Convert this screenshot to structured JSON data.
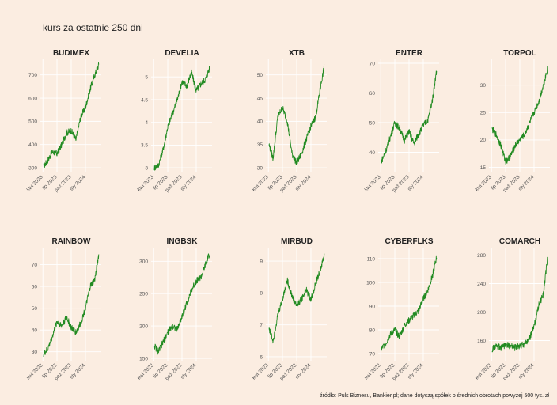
{
  "chart_data": {
    "type": "line",
    "title": "kurs za ostatnie 250 dni",
    "caption": "źródło: Puls Biznesu, Bankier.pl; dane dotyczą spółek o średnich obrotach powyżej 500 tys. zł",
    "line_color": "#228b22",
    "background": "#fbede1",
    "grid_color": "#ffffff",
    "x_axis": {
      "start": "2023-04-05",
      "end": "2024-03-28",
      "tick_dates": [
        "2023-04-01",
        "2023-07-01",
        "2023-10-01",
        "2024-01-01"
      ],
      "tick_labels": [
        "kwi 2023",
        "lip 2023",
        "paź 2023",
        "sty 2024"
      ]
    },
    "panels": [
      {
        "name": "BUDIMEX",
        "ylim": [
          290,
          750
        ],
        "yticks": [
          300,
          400,
          500,
          600,
          700
        ],
        "x": [
          "2023-04-05",
          "2023-05-01",
          "2023-06-01",
          "2023-07-01",
          "2023-08-01",
          "2023-09-01",
          "2023-10-01",
          "2023-11-01",
          "2023-12-01",
          "2024-01-01",
          "2024-02-01",
          "2024-03-01",
          "2024-03-28"
        ],
        "y": [
          305,
          330,
          370,
          360,
          400,
          450,
          460,
          420,
          520,
          560,
          640,
          700,
          745
        ]
      },
      {
        "name": "DEVELIA",
        "ylim": [
          2.95,
          5.3
        ],
        "yticks": [
          3.0,
          3.5,
          4.0,
          4.5,
          5.0
        ],
        "x": [
          "2023-04-05",
          "2023-05-01",
          "2023-06-01",
          "2023-07-01",
          "2023-08-01",
          "2023-09-01",
          "2023-10-01",
          "2023-11-01",
          "2023-12-01",
          "2024-01-01",
          "2024-02-01",
          "2024-03-01",
          "2024-03-28"
        ],
        "y": [
          3.0,
          3.05,
          3.4,
          3.9,
          4.2,
          4.5,
          4.9,
          4.8,
          5.1,
          4.7,
          4.85,
          4.95,
          5.2
        ]
      },
      {
        "name": "XTB",
        "ylim": [
          29.5,
          52.5
        ],
        "yticks": [
          30,
          35,
          40,
          45,
          50
        ],
        "x": [
          "2023-04-05",
          "2023-05-01",
          "2023-06-01",
          "2023-07-01",
          "2023-08-01",
          "2023-09-01",
          "2023-10-01",
          "2023-11-01",
          "2023-12-01",
          "2024-01-01",
          "2024-02-01",
          "2024-03-01",
          "2024-03-28"
        ],
        "y": [
          35,
          32,
          41,
          43,
          40,
          33,
          31,
          33,
          36,
          39,
          41,
          47,
          52
        ]
      },
      {
        "name": "ENTER",
        "ylim": [
          34,
          70
        ],
        "yticks": [
          40,
          50,
          60,
          70
        ],
        "x": [
          "2023-04-05",
          "2023-05-01",
          "2023-06-01",
          "2023-07-01",
          "2023-08-01",
          "2023-09-01",
          "2023-10-01",
          "2023-11-01",
          "2023-12-01",
          "2024-01-01",
          "2024-02-01",
          "2024-03-01",
          "2024-03-28"
        ],
        "y": [
          37,
          40,
          45,
          50,
          48,
          44,
          47,
          43,
          46,
          49,
          51,
          58,
          68
        ]
      },
      {
        "name": "TORPOL",
        "ylim": [
          14.5,
          34
        ],
        "yticks": [
          15,
          20,
          25,
          30
        ],
        "x": [
          "2023-04-05",
          "2023-05-01",
          "2023-06-01",
          "2023-07-01",
          "2023-08-01",
          "2023-09-01",
          "2023-10-01",
          "2023-11-01",
          "2023-12-01",
          "2024-01-01",
          "2024-02-01",
          "2024-03-01",
          "2024-03-28"
        ],
        "y": [
          22,
          21,
          19,
          16,
          17,
          19,
          20,
          21,
          23,
          25,
          27,
          30,
          33
        ]
      },
      {
        "name": "RAINBOW",
        "ylim": [
          27,
          76
        ],
        "yticks": [
          30,
          40,
          50,
          60,
          70
        ],
        "x": [
          "2023-04-05",
          "2023-05-01",
          "2023-06-01",
          "2023-07-01",
          "2023-08-01",
          "2023-09-01",
          "2023-10-01",
          "2023-11-01",
          "2023-12-01",
          "2024-01-01",
          "2024-02-01",
          "2024-03-01",
          "2024-03-28"
        ],
        "y": [
          29,
          31,
          37,
          44,
          42,
          46,
          41,
          39,
          43,
          50,
          60,
          63,
          75
        ]
      },
      {
        "name": "INGBSK",
        "ylim": [
          150,
          315
        ],
        "yticks": [
          150,
          200,
          250,
          300
        ],
        "x": [
          "2023-04-05",
          "2023-05-01",
          "2023-06-01",
          "2023-07-01",
          "2023-08-01",
          "2023-09-01",
          "2023-10-01",
          "2023-11-01",
          "2023-12-01",
          "2024-01-01",
          "2024-02-01",
          "2024-03-01",
          "2024-03-28"
        ],
        "y": [
          170,
          160,
          175,
          190,
          200,
          195,
          215,
          235,
          255,
          270,
          275,
          295,
          312
        ]
      },
      {
        "name": "MIRBUD",
        "ylim": [
          5.95,
          9.3
        ],
        "yticks": [
          6,
          7,
          8,
          9
        ],
        "x": [
          "2023-04-05",
          "2023-05-01",
          "2023-06-01",
          "2023-07-01",
          "2023-08-01",
          "2023-09-01",
          "2023-10-01",
          "2023-11-01",
          "2023-12-01",
          "2024-01-01",
          "2024-02-01",
          "2024-03-01",
          "2024-03-28"
        ],
        "y": [
          6.9,
          6.5,
          7.3,
          7.8,
          8.4,
          7.9,
          7.6,
          7.8,
          8.1,
          7.8,
          8.3,
          8.7,
          9.2
        ]
      },
      {
        "name": "CYBERFLKS",
        "ylim": [
          68,
          113
        ],
        "yticks": [
          70,
          80,
          90,
          100,
          110
        ],
        "x": [
          "2023-04-05",
          "2023-05-01",
          "2023-06-01",
          "2023-07-01",
          "2023-08-01",
          "2023-09-01",
          "2023-10-01",
          "2023-11-01",
          "2023-12-01",
          "2024-01-01",
          "2024-02-01",
          "2024-03-01",
          "2024-03-28"
        ],
        "y": [
          72,
          74,
          78,
          80,
          77,
          82,
          84,
          86,
          88,
          93,
          97,
          103,
          111
        ]
      },
      {
        "name": "COMARCH",
        "ylim": [
          135,
          285
        ],
        "yticks": [
          160,
          200,
          240,
          280
        ],
        "x": [
          "2023-04-05",
          "2023-05-01",
          "2023-06-01",
          "2023-07-01",
          "2023-08-01",
          "2023-09-01",
          "2023-10-01",
          "2023-11-01",
          "2023-12-01",
          "2024-01-01",
          "2024-02-01",
          "2024-03-01",
          "2024-03-28"
        ],
        "y": [
          148,
          152,
          150,
          154,
          152,
          150,
          153,
          155,
          162,
          180,
          210,
          225,
          275
        ]
      }
    ]
  }
}
